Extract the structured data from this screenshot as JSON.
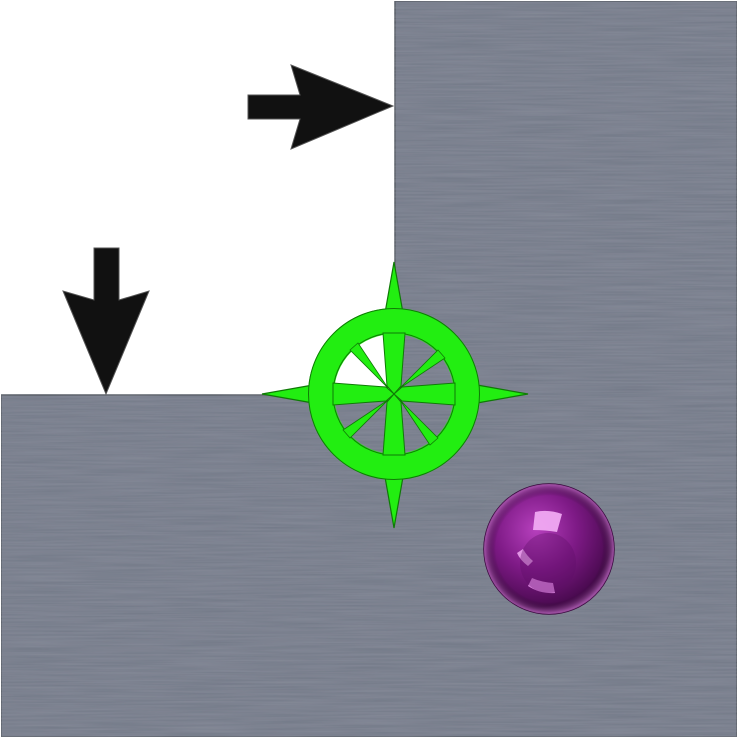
{
  "scene": {
    "type": "puzzle-board",
    "background_color": "#ffffff"
  },
  "pieces": {
    "wall": {
      "name": "metal-wall",
      "color": "#727887",
      "edge_color": "#4d525c"
    },
    "target": {
      "name": "crosshair-target",
      "color": "#22ee11",
      "edge_color": "#0f7a06"
    },
    "ball": {
      "name": "marble",
      "color": "#7e1a86",
      "highlight_color": "#f0a9f2"
    },
    "arrows": [
      {
        "name": "arrow-right",
        "direction": "right",
        "color": "#111111"
      },
      {
        "name": "arrow-down",
        "direction": "down",
        "color": "#111111"
      }
    ]
  }
}
